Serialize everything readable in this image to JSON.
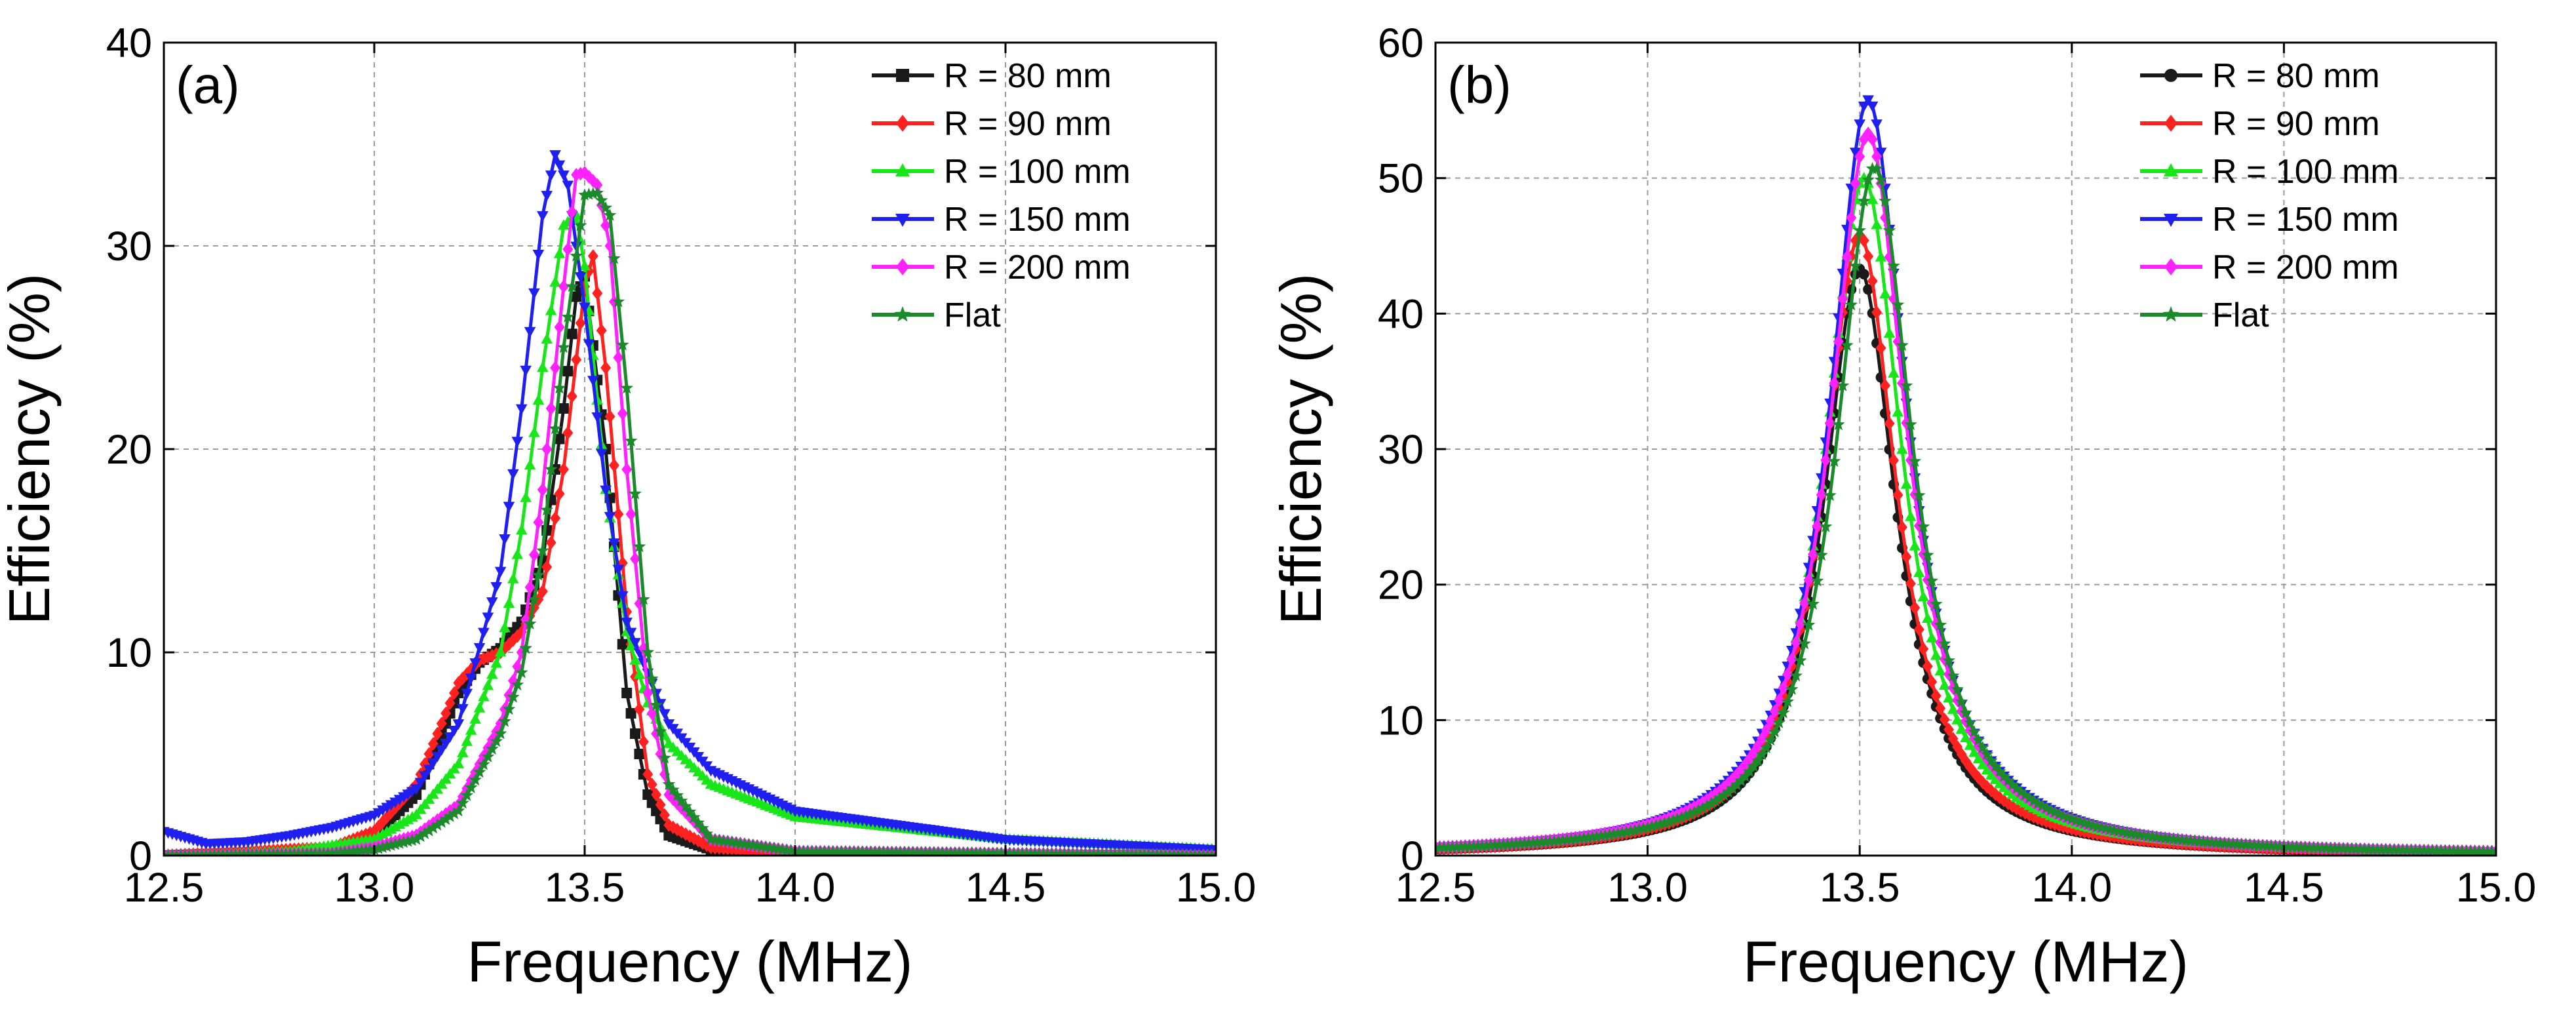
{
  "colors": {
    "R80": "#1a1a1a",
    "R90": "#ff2020",
    "R100": "#19e619",
    "R150": "#1f1ff0",
    "R200": "#ff22ff",
    "Flat": "#1a8a2a"
  },
  "chart_data": [
    {
      "type": "line",
      "panel_label": "(a)",
      "xlabel": "Frequency (MHz)",
      "ylabel": "Efficiency (%)",
      "xlim": [
        12.5,
        15.0
      ],
      "ylim": [
        0,
        40
      ],
      "xticks": [
        "12.5",
        "13.0",
        "13.5",
        "14.0",
        "14.5",
        "15.0"
      ],
      "yticks": [
        "0",
        "10",
        "20",
        "30",
        "40"
      ],
      "grid": true,
      "legend_position": "top-right",
      "series": [
        {
          "name": "R = 80 mm",
          "key": "R80",
          "marker": "square",
          "x": [
            12.5,
            12.9,
            13.0,
            13.1,
            13.15,
            13.2,
            13.25,
            13.3,
            13.35,
            13.4,
            13.45,
            13.48,
            13.5,
            13.55,
            13.6,
            13.65,
            13.7,
            13.8,
            14.0,
            15.0
          ],
          "y": [
            0.0,
            0.3,
            1.0,
            3.0,
            5.5,
            8.0,
            9.5,
            10.2,
            11.5,
            14.5,
            22.0,
            27.5,
            28.5,
            20.0,
            8.0,
            3.0,
            1.0,
            0.3,
            0.1,
            0.0
          ]
        },
        {
          "name": "R = 90 mm",
          "key": "R90",
          "marker": "diamond",
          "x": [
            12.5,
            12.9,
            13.0,
            13.1,
            13.15,
            13.2,
            13.25,
            13.3,
            13.35,
            13.4,
            13.45,
            13.5,
            13.52,
            13.55,
            13.6,
            13.65,
            13.7,
            13.8,
            14.0,
            15.0
          ],
          "y": [
            0.0,
            0.4,
            1.2,
            3.5,
            6.0,
            8.5,
            9.6,
            10.0,
            11.0,
            13.0,
            19.0,
            28.0,
            29.5,
            24.0,
            12.0,
            4.0,
            1.5,
            0.4,
            0.1,
            0.0
          ]
        },
        {
          "name": "R = 100 mm",
          "key": "R100",
          "marker": "triangle-up",
          "x": [
            12.5,
            12.8,
            13.0,
            13.1,
            13.2,
            13.3,
            13.35,
            13.4,
            13.45,
            13.48,
            13.5,
            13.55,
            13.6,
            13.65,
            13.7,
            13.8,
            14.0,
            14.5,
            15.0
          ],
          "y": [
            0.0,
            0.2,
            0.8,
            2.0,
            4.5,
            10.0,
            16.0,
            24.0,
            31.0,
            31.5,
            29.0,
            18.0,
            11.0,
            7.5,
            5.5,
            3.5,
            1.9,
            0.8,
            0.3
          ]
        },
        {
          "name": "R = 150 mm",
          "key": "R150",
          "marker": "triangle-down",
          "x": [
            12.5,
            12.6,
            12.7,
            12.8,
            12.9,
            13.0,
            13.1,
            13.2,
            13.3,
            13.35,
            13.4,
            13.43,
            13.46,
            13.5,
            13.55,
            13.6,
            13.7,
            13.8,
            14.0,
            14.5,
            15.0
          ],
          "y": [
            1.2,
            0.6,
            0.7,
            1.0,
            1.4,
            2.0,
            3.3,
            6.5,
            14.0,
            22.0,
            31.5,
            34.5,
            33.0,
            27.0,
            18.0,
            11.5,
            6.5,
            4.2,
            2.2,
            0.8,
            0.3
          ]
        },
        {
          "name": "R = 200 mm",
          "key": "R200",
          "marker": "diamond",
          "x": [
            12.5,
            12.9,
            13.0,
            13.1,
            13.2,
            13.3,
            13.35,
            13.4,
            13.45,
            13.48,
            13.5,
            13.53,
            13.56,
            13.6,
            13.65,
            13.7,
            13.8,
            14.0,
            15.0
          ],
          "y": [
            0.0,
            0.1,
            0.4,
            1.0,
            2.5,
            6.5,
            10.0,
            18.0,
            28.0,
            33.5,
            33.6,
            33.0,
            30.0,
            19.0,
            8.0,
            3.0,
            0.8,
            0.2,
            0.0
          ]
        },
        {
          "name": "Flat",
          "key": "Flat",
          "marker": "star",
          "x": [
            12.5,
            12.9,
            13.0,
            13.1,
            13.2,
            13.3,
            13.35,
            13.4,
            13.45,
            13.5,
            13.53,
            13.56,
            13.6,
            13.65,
            13.7,
            13.8,
            14.0,
            15.0
          ],
          "y": [
            0.0,
            0.1,
            0.3,
            0.8,
            2.2,
            6.0,
            9.0,
            15.0,
            25.0,
            32.5,
            32.6,
            31.5,
            23.0,
            10.0,
            3.5,
            0.8,
            0.2,
            0.0
          ]
        }
      ]
    },
    {
      "type": "line",
      "panel_label": "(b)",
      "xlabel": "Frequency (MHz)",
      "ylabel": "Efficiency (%)",
      "xlim": [
        12.5,
        15.0
      ],
      "ylim": [
        0,
        60
      ],
      "xticks": [
        "12.5",
        "13.0",
        "13.5",
        "14.0",
        "14.5",
        "15.0"
      ],
      "yticks": [
        "0",
        "10",
        "20",
        "30",
        "40",
        "50",
        "60"
      ],
      "grid": true,
      "legend_position": "top-right",
      "series": [
        {
          "name": "R = 80 mm",
          "key": "R80",
          "marker": "circle",
          "peak": 43.3,
          "f0": 13.5,
          "hw": 0.105
        },
        {
          "name": "R = 90 mm",
          "key": "R90",
          "marker": "diamond",
          "peak": 45.8,
          "f0": 13.5,
          "hw": 0.106
        },
        {
          "name": "R = 100 mm",
          "key": "R100",
          "marker": "triangle-up",
          "peak": 50.0,
          "f0": 13.51,
          "hw": 0.11
        },
        {
          "name": "R = 150 mm",
          "key": "R150",
          "marker": "triangle-down",
          "peak": 55.8,
          "f0": 13.52,
          "hw": 0.11
        },
        {
          "name": "R = 200 mm",
          "key": "R200",
          "marker": "diamond",
          "peak": 53.3,
          "f0": 13.52,
          "hw": 0.11
        },
        {
          "name": "Flat",
          "key": "Flat",
          "marker": "star",
          "peak": 50.8,
          "f0": 13.535,
          "hw": 0.11
        }
      ]
    }
  ]
}
